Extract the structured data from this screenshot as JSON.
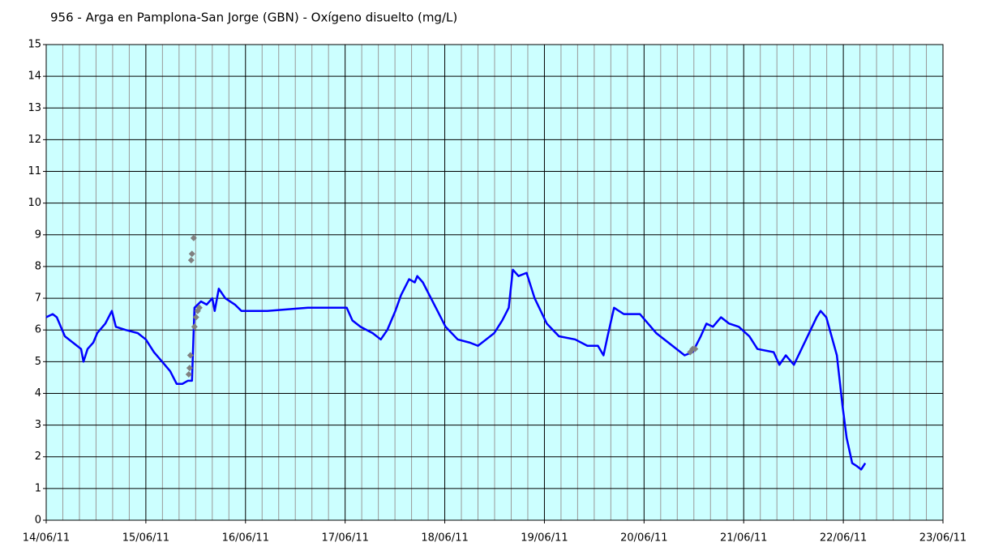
{
  "chart_data": {
    "type": "line",
    "title": "956 - Arga en Pamplona-San Jorge (GBN) - Oxígeno disuelto (mg/L)",
    "xlim": [
      0,
      9
    ],
    "ylim": [
      0,
      15
    ],
    "xticks": [
      {
        "value": 0,
        "label": "14/06/11"
      },
      {
        "value": 1,
        "label": "15/06/11"
      },
      {
        "value": 2,
        "label": "16/06/11"
      },
      {
        "value": 3,
        "label": "17/06/11"
      },
      {
        "value": 4,
        "label": "18/06/11"
      },
      {
        "value": 5,
        "label": "19/06/11"
      },
      {
        "value": 6,
        "label": "20/06/11"
      },
      {
        "value": 7,
        "label": "21/06/11"
      },
      {
        "value": 8,
        "label": "22/06/11"
      },
      {
        "value": 9,
        "label": "23/06/11"
      }
    ],
    "yticks": [
      0,
      1,
      2,
      3,
      4,
      5,
      6,
      7,
      8,
      9,
      10,
      11,
      12,
      13,
      14,
      15
    ],
    "grid": true,
    "background": "#ccffff",
    "series": [
      {
        "type": "line",
        "color": "#0000ff",
        "x": [
          0,
          0.065,
          0.106,
          0.187,
          0.309,
          0.35,
          0.374,
          0.415,
          0.472,
          0.512,
          0.593,
          0.659,
          0.699,
          0.797,
          0.919,
          1.0,
          1.081,
          1.163,
          1.244,
          1.309,
          1.366,
          1.423,
          1.463,
          1.488,
          1.553,
          1.61,
          1.667,
          1.691,
          1.732,
          1.797,
          1.894,
          1.959,
          2.016,
          2.22,
          2.626,
          3.016,
          3.073,
          3.154,
          3.276,
          3.358,
          3.423,
          3.504,
          3.561,
          3.642,
          3.699,
          3.724,
          3.78,
          3.927,
          4.008,
          4.13,
          4.252,
          4.333,
          4.415,
          4.496,
          4.577,
          4.642,
          4.683,
          4.74,
          4.821,
          4.902,
          5.024,
          5.146,
          5.309,
          5.431,
          5.537,
          5.593,
          5.634,
          5.699,
          5.797,
          5.959,
          6.122,
          6.285,
          6.407,
          6.488,
          6.569,
          6.626,
          6.691,
          6.772,
          6.854,
          6.951,
          7.057,
          7.138,
          7.301,
          7.358,
          7.423,
          7.504,
          7.626,
          7.732,
          7.772,
          7.829,
          7.935,
          7.992,
          8.033,
          8.089,
          8.138,
          8.179,
          8.22
        ],
        "values": [
          6.4,
          6.5,
          6.4,
          5.8,
          5.5,
          5.4,
          5.0,
          5.4,
          5.6,
          5.9,
          6.2,
          6.6,
          6.1,
          6.0,
          5.9,
          5.7,
          5.3,
          5.0,
          4.7,
          4.3,
          4.3,
          4.4,
          4.4,
          6.7,
          6.9,
          6.8,
          7.0,
          6.6,
          7.3,
          7.0,
          6.8,
          6.6,
          6.6,
          6.6,
          6.7,
          6.7,
          6.3,
          6.1,
          5.9,
          5.7,
          6.0,
          6.6,
          7.1,
          7.6,
          7.5,
          7.7,
          7.5,
          6.6,
          6.1,
          5.7,
          5.6,
          5.5,
          5.7,
          5.9,
          6.3,
          6.7,
          7.9,
          7.7,
          7.8,
          7.0,
          6.2,
          5.8,
          5.7,
          5.5,
          5.5,
          5.2,
          5.8,
          6.7,
          6.5,
          6.5,
          5.9,
          5.5,
          5.2,
          5.3,
          5.8,
          6.2,
          6.1,
          6.4,
          6.2,
          6.1,
          5.8,
          5.4,
          5.3,
          4.9,
          5.2,
          4.9,
          5.7,
          6.4,
          6.6,
          6.4,
          5.2,
          3.6,
          2.6,
          1.8,
          1.7,
          1.6,
          1.8
        ]
      },
      {
        "type": "scatter",
        "color": "#808080",
        "x": [
          1.431,
          1.439,
          1.447,
          1.455,
          1.463,
          1.48,
          1.488,
          1.504,
          1.52,
          1.537,
          6.463,
          6.488,
          6.512
        ],
        "values": [
          4.6,
          4.8,
          5.2,
          8.2,
          8.4,
          8.9,
          6.1,
          6.4,
          6.6,
          6.7,
          5.3,
          5.4,
          5.4
        ]
      }
    ]
  }
}
